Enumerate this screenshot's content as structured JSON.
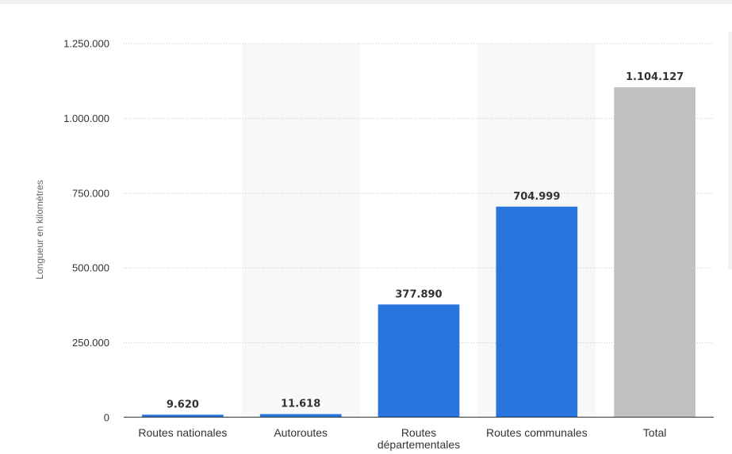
{
  "chart_data": {
    "type": "bar",
    "categories": [
      "Routes nationales",
      "Autoroutes",
      "Routes départementales",
      "Routes communales",
      "Total"
    ],
    "category_label_lines": [
      [
        "Routes nationales"
      ],
      [
        "Autoroutes"
      ],
      [
        "Routes",
        "départementales"
      ],
      [
        "Routes communales"
      ],
      [
        "Total"
      ]
    ],
    "values": [
      9620,
      11618,
      377890,
      704999,
      1104127
    ],
    "value_labels": [
      "9.620",
      "11.618",
      "377.890",
      "704.999",
      "1.104.127"
    ],
    "bar_colors": [
      "#2876dd",
      "#2876dd",
      "#2876dd",
      "#2876dd",
      "#c0c0c0"
    ],
    "alternating_band_color": "#f8f8f8",
    "title": "",
    "xlabel": "",
    "ylabel": "Longueur en kilomètres",
    "ylim": [
      0,
      1250000
    ],
    "yticks": [
      0,
      250000,
      500000,
      750000,
      1000000,
      1250000
    ],
    "ytick_labels": [
      "0",
      "250.000",
      "500.000",
      "750.000",
      "1.000.000",
      "1.250.000"
    ],
    "grid": true,
    "legend": "none"
  }
}
